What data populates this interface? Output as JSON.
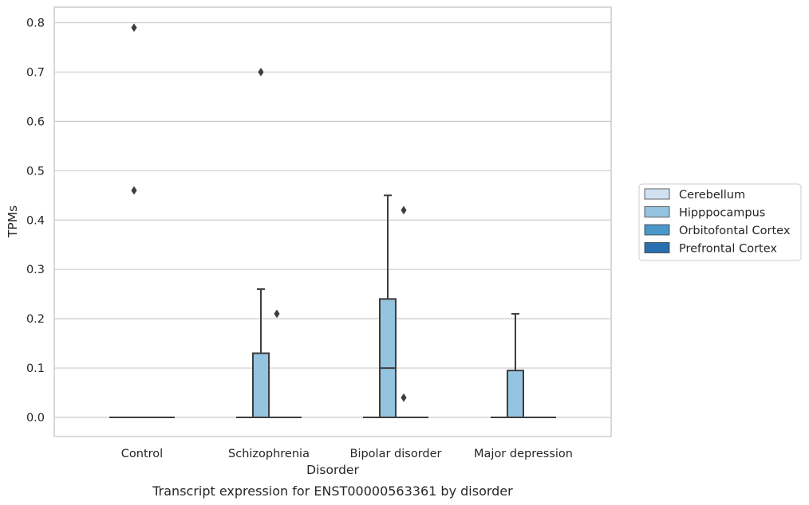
{
  "chart_data": {
    "type": "box",
    "caption": "Transcript expression for ENST00000563361 by disorder",
    "xlabel": "Disorder",
    "ylabel": "TPMs",
    "ylim": [
      -0.04,
      0.83
    ],
    "yticks": [
      "0.0",
      "0.1",
      "0.2",
      "0.3",
      "0.4",
      "0.5",
      "0.6",
      "0.7",
      "0.8"
    ],
    "ytick_values": [
      0.0,
      0.1,
      0.2,
      0.3,
      0.4,
      0.5,
      0.6,
      0.7,
      0.8
    ],
    "categories": [
      "Control",
      "Schizophrenia",
      "Bipolar disorder",
      "Major depression"
    ],
    "grid": "horizontal",
    "legend_position": "right",
    "series": [
      {
        "name": "Cerebellum",
        "color": "#d0e1f2",
        "boxes": [
          {
            "category": "Control",
            "q1": 0.0,
            "median": 0.0,
            "q3": 0.0,
            "whisker_low": 0.0,
            "whisker_high": 0.0,
            "outliers": []
          },
          {
            "category": "Schizophrenia",
            "q1": 0.0,
            "median": 0.0,
            "q3": 0.0,
            "whisker_low": 0.0,
            "whisker_high": 0.0,
            "outliers": []
          },
          {
            "category": "Bipolar disorder",
            "q1": 0.0,
            "median": 0.0,
            "q3": 0.0,
            "whisker_low": 0.0,
            "whisker_high": 0.0,
            "outliers": []
          },
          {
            "category": "Major depression",
            "q1": 0.0,
            "median": 0.0,
            "q3": 0.0,
            "whisker_low": 0.0,
            "whisker_high": 0.0,
            "outliers": []
          }
        ]
      },
      {
        "name": "Hipppocampus",
        "color": "#94c4df",
        "boxes": [
          {
            "category": "Control",
            "q1": 0.0,
            "median": 0.0,
            "q3": 0.0,
            "whisker_low": 0.0,
            "whisker_high": 0.0,
            "outliers": [
              0.46,
              0.79
            ]
          },
          {
            "category": "Schizophrenia",
            "q1": 0.0,
            "median": 0.0,
            "q3": 0.13,
            "whisker_low": 0.0,
            "whisker_high": 0.26,
            "outliers": [
              0.7
            ]
          },
          {
            "category": "Bipolar disorder",
            "q1": 0.0,
            "median": 0.1,
            "q3": 0.24,
            "whisker_low": 0.0,
            "whisker_high": 0.45,
            "outliers": []
          },
          {
            "category": "Major depression",
            "q1": 0.0,
            "median": 0.0,
            "q3": 0.095,
            "whisker_low": 0.0,
            "whisker_high": 0.21,
            "outliers": []
          }
        ]
      },
      {
        "name": "Orbitofontal Cortex",
        "color": "#4a98c9",
        "boxes": [
          {
            "category": "Control",
            "q1": 0.0,
            "median": 0.0,
            "q3": 0.0,
            "whisker_low": 0.0,
            "whisker_high": 0.0,
            "outliers": []
          },
          {
            "category": "Schizophrenia",
            "q1": 0.0,
            "median": 0.0,
            "q3": 0.0,
            "whisker_low": 0.0,
            "whisker_high": 0.0,
            "outliers": [
              0.21
            ]
          },
          {
            "category": "Bipolar disorder",
            "q1": 0.0,
            "median": 0.0,
            "q3": 0.0,
            "whisker_low": 0.0,
            "whisker_high": 0.0,
            "outliers": [
              0.04,
              0.42
            ]
          },
          {
            "category": "Major depression",
            "q1": 0.0,
            "median": 0.0,
            "q3": 0.0,
            "whisker_low": 0.0,
            "whisker_high": 0.0,
            "outliers": []
          }
        ]
      },
      {
        "name": "Prefrontal Cortex",
        "color": "#2a6fb0",
        "boxes": [
          {
            "category": "Control",
            "q1": 0.0,
            "median": 0.0,
            "q3": 0.0,
            "whisker_low": 0.0,
            "whisker_high": 0.0,
            "outliers": []
          },
          {
            "category": "Schizophrenia",
            "q1": 0.0,
            "median": 0.0,
            "q3": 0.0,
            "whisker_low": 0.0,
            "whisker_high": 0.0,
            "outliers": []
          },
          {
            "category": "Bipolar disorder",
            "q1": 0.0,
            "median": 0.0,
            "q3": 0.0,
            "whisker_low": 0.0,
            "whisker_high": 0.0,
            "outliers": []
          },
          {
            "category": "Major depression",
            "q1": 0.0,
            "median": 0.0,
            "q3": 0.0,
            "whisker_low": 0.0,
            "whisker_high": 0.0,
            "outliers": []
          }
        ]
      }
    ]
  },
  "style": {
    "grid_color": "#cccccc",
    "frame_color": "#cccccc",
    "line_color": "#3d3d3d",
    "background": "#ffffff"
  }
}
